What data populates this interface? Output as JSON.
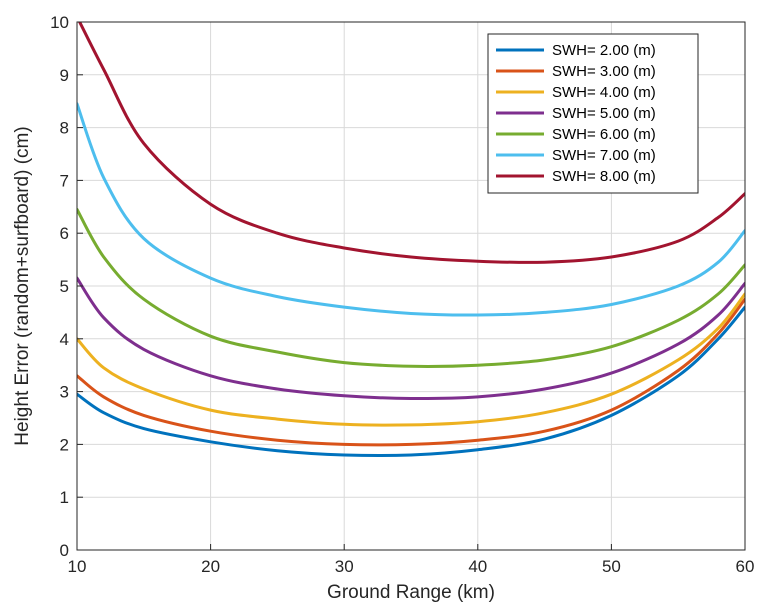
{
  "chart_data": {
    "type": "line",
    "title": "",
    "xlabel": "Ground Range (km)",
    "ylabel": "Height Error (random+surfboard) (cm)",
    "xlim": [
      10,
      60
    ],
    "ylim": [
      0,
      10
    ],
    "xticks": [
      10,
      20,
      30,
      40,
      50,
      60
    ],
    "yticks": [
      0,
      1,
      2,
      3,
      4,
      5,
      6,
      7,
      8,
      9,
      10
    ],
    "grid": true,
    "legend_position": "top-right",
    "x": [
      10,
      12,
      15,
      20,
      25,
      30,
      35,
      40,
      45,
      50,
      55,
      58,
      60
    ],
    "series": [
      {
        "name": "SWH= 2.00 (m)",
        "color": "#0072BD",
        "values": [
          2.95,
          2.6,
          2.3,
          2.05,
          1.88,
          1.8,
          1.8,
          1.9,
          2.1,
          2.55,
          3.3,
          4.0,
          4.6
        ]
      },
      {
        "name": "SWH= 3.00 (m)",
        "color": "#D95319",
        "values": [
          3.3,
          2.9,
          2.55,
          2.25,
          2.08,
          2.0,
          2.0,
          2.08,
          2.25,
          2.65,
          3.4,
          4.1,
          4.75
        ]
      },
      {
        "name": "SWH= 4.00 (m)",
        "color": "#EDB120",
        "values": [
          4.0,
          3.45,
          3.05,
          2.65,
          2.48,
          2.38,
          2.37,
          2.43,
          2.6,
          2.95,
          3.6,
          4.2,
          4.85
        ]
      },
      {
        "name": "SWH= 5.00 (m)",
        "color": "#7E2F8E",
        "values": [
          5.15,
          4.4,
          3.8,
          3.3,
          3.05,
          2.92,
          2.87,
          2.9,
          3.05,
          3.35,
          3.9,
          4.45,
          5.05
        ]
      },
      {
        "name": "SWH= 6.00 (m)",
        "color": "#77AC30",
        "values": [
          6.45,
          5.55,
          4.75,
          4.05,
          3.75,
          3.55,
          3.48,
          3.5,
          3.6,
          3.85,
          4.35,
          4.85,
          5.4
        ]
      },
      {
        "name": "SWH= 7.00 (m)",
        "color": "#4DBEEE",
        "values": [
          8.45,
          7.05,
          5.9,
          5.15,
          4.8,
          4.6,
          4.48,
          4.45,
          4.5,
          4.65,
          5.0,
          5.45,
          6.05
        ]
      },
      {
        "name": "SWH= 8.00 (m)",
        "color": "#A2142F",
        "values": [
          10.1,
          9.1,
          7.7,
          6.55,
          6.0,
          5.72,
          5.55,
          5.47,
          5.45,
          5.55,
          5.85,
          6.3,
          6.75
        ]
      }
    ]
  }
}
